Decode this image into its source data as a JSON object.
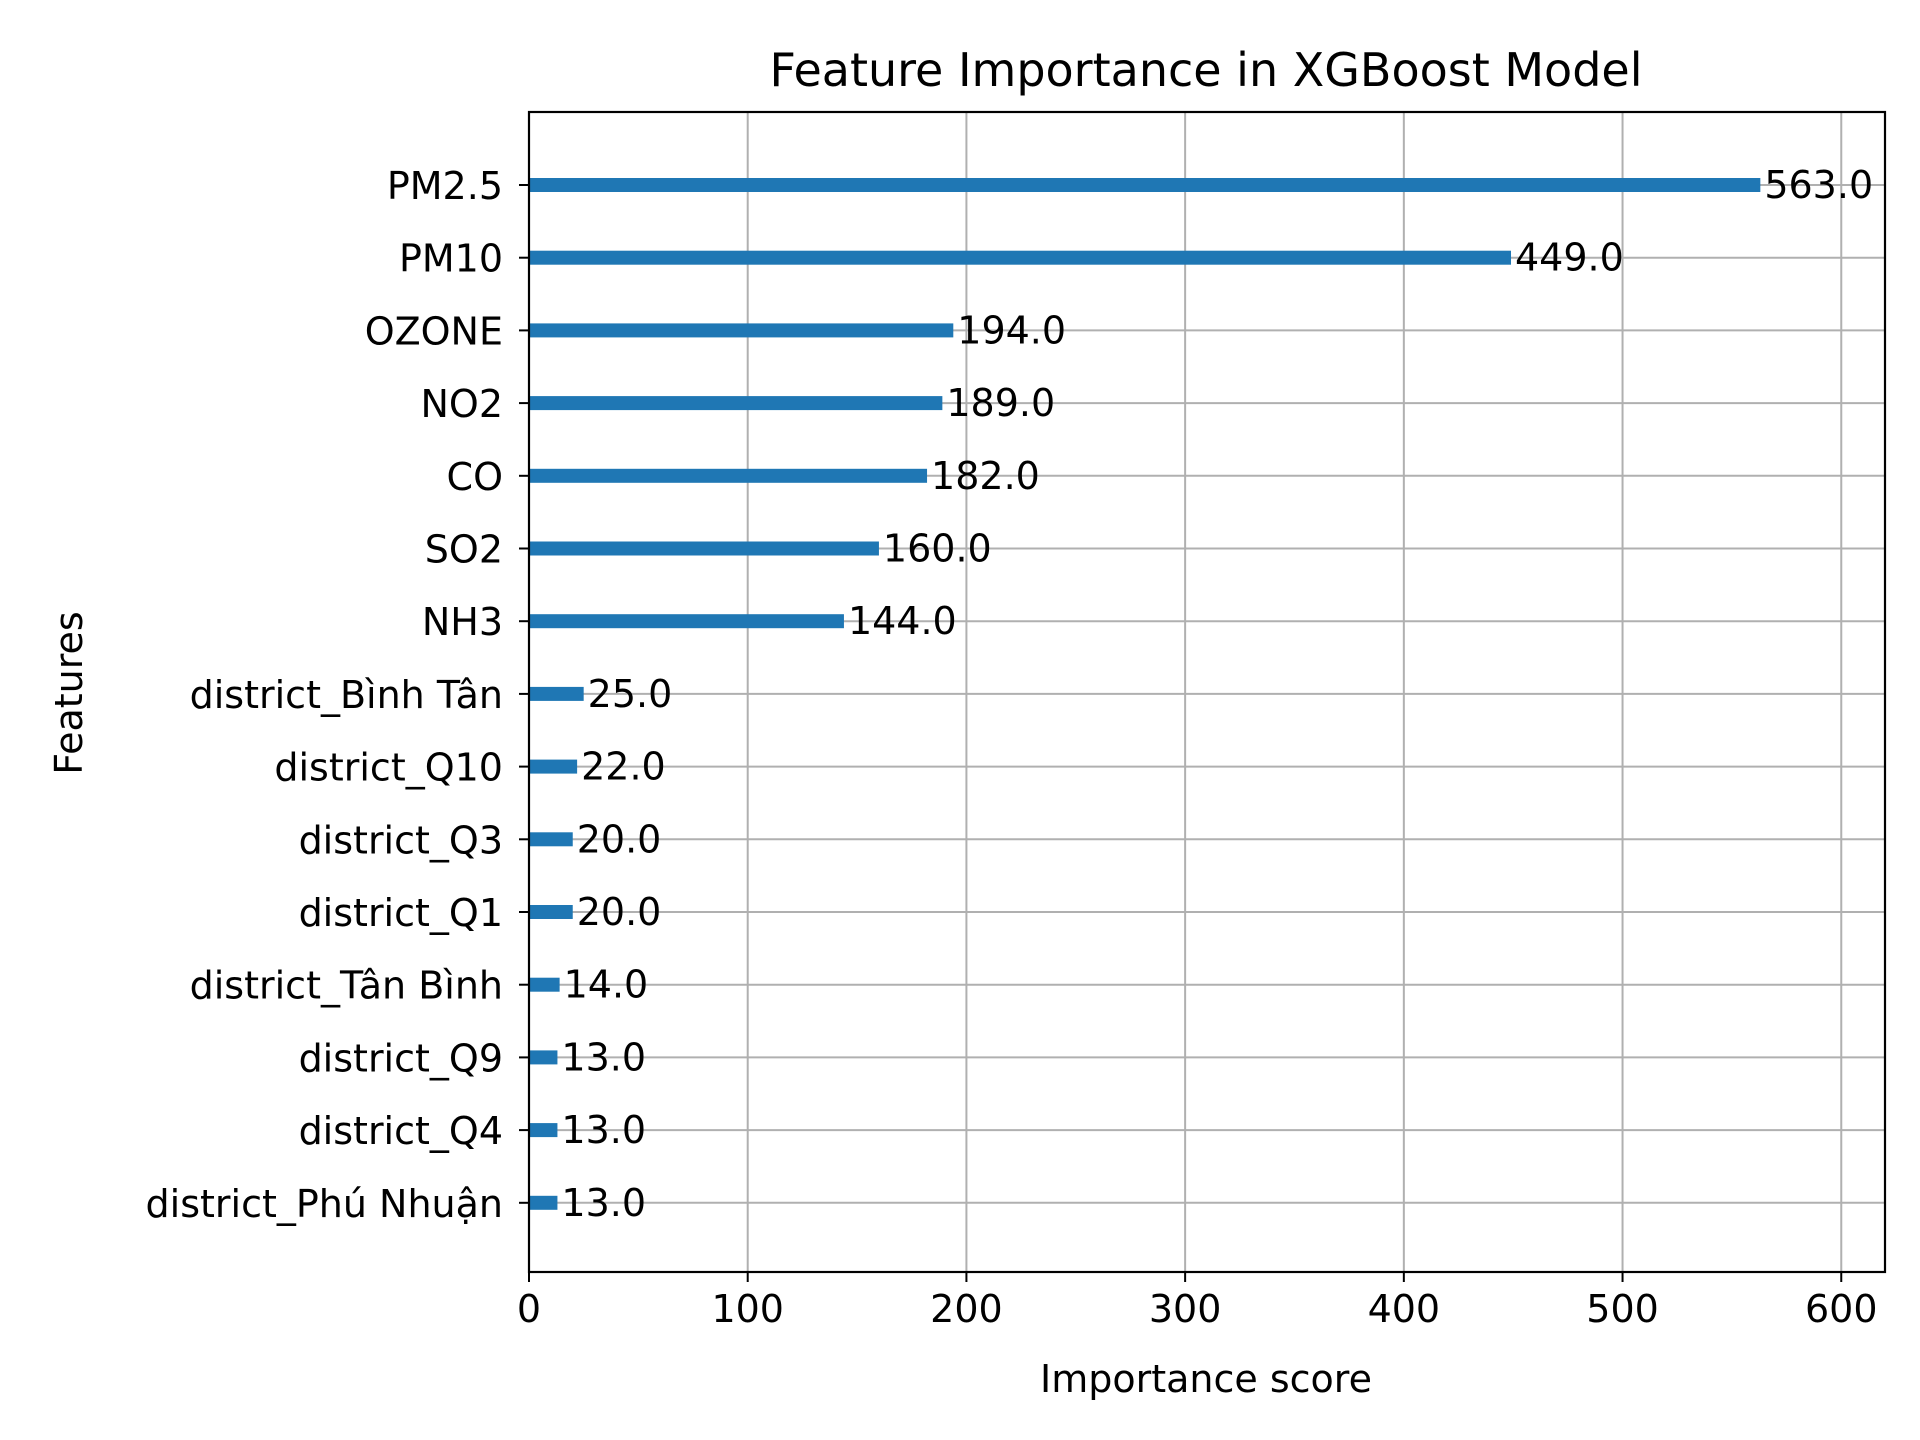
{
  "chart_data": {
    "type": "bar",
    "orientation": "horizontal",
    "title": "Feature Importance in XGBoost Model",
    "xlabel": "Importance score",
    "ylabel": "Features",
    "xlim": [
      0,
      620
    ],
    "xticks": [
      0,
      100,
      200,
      300,
      400,
      500,
      600
    ],
    "grid": true,
    "bar_color": "#1f77b4",
    "categories": [
      "PM2.5",
      "PM10",
      "OZONE",
      "NO2",
      "CO",
      "SO2",
      "NH3",
      "district_Bình Tân",
      "district_Q10",
      "district_Q3",
      "district_Q1",
      "district_Tân Bình",
      "district_Q9",
      "district_Q4",
      "district_Phú Nhuận"
    ],
    "values": [
      563,
      449,
      194,
      189,
      182,
      160,
      144,
      25,
      22,
      20,
      20,
      14,
      13,
      13,
      13
    ],
    "value_labels": [
      "563.0",
      "449.0",
      "194.0",
      "189.0",
      "182.0",
      "160.0",
      "144.0",
      "25.0",
      "22.0",
      "20.0",
      "20.0",
      "14.0",
      "13.0",
      "13.0",
      "13.0"
    ]
  }
}
